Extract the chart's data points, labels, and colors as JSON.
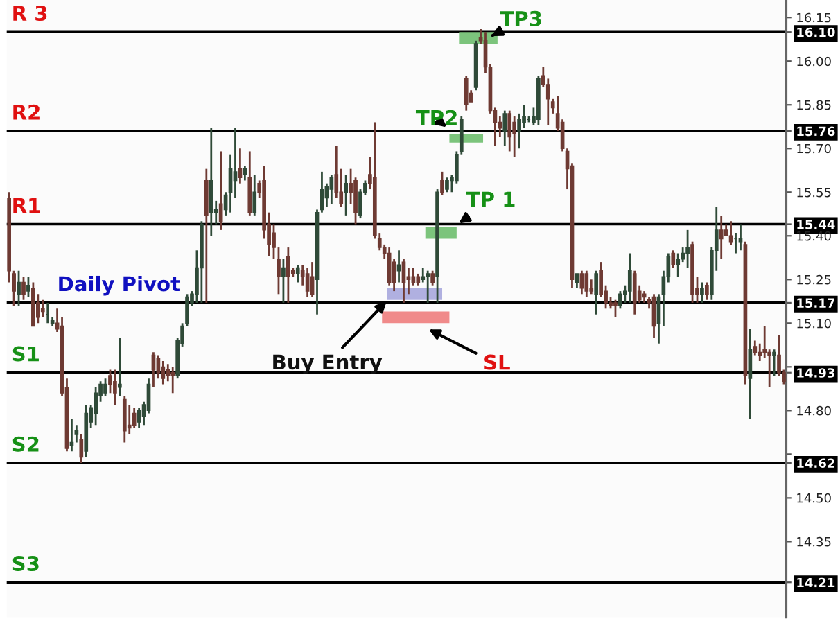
{
  "chart_data": {
    "type": "candlestick",
    "categories": [
      null,
      null,
      null,
      null,
      null,
      null,
      null,
      null,
      null,
      null,
      null,
      null,
      null,
      null,
      null,
      null,
      null,
      null,
      null,
      null,
      null,
      null,
      null,
      null,
      null,
      null,
      null,
      null,
      null,
      null,
      null,
      null,
      null,
      null,
      null,
      null,
      null,
      null,
      null,
      null,
      null,
      null,
      null,
      null,
      null,
      null,
      null,
      null,
      null,
      null,
      null,
      null,
      null,
      null,
      null,
      null,
      null,
      null,
      null,
      null,
      null,
      null,
      null,
      null,
      null,
      null,
      null,
      null,
      null,
      null,
      null,
      null,
      null,
      null,
      null,
      null,
      null,
      null,
      null,
      null,
      null,
      null,
      null,
      null,
      null,
      null,
      null,
      null,
      null,
      null,
      null,
      null,
      null,
      null,
      null,
      null,
      null,
      null,
      null,
      null,
      null,
      null,
      null,
      null,
      null,
      null,
      null,
      null,
      null,
      null,
      null,
      null,
      null,
      null,
      null,
      null,
      null,
      null,
      null,
      null,
      null,
      null,
      null,
      null,
      null,
      null,
      null,
      null,
      null,
      null,
      null,
      null,
      null,
      null,
      null,
      null,
      null,
      null,
      null,
      null,
      null,
      null,
      null,
      null,
      null,
      null,
      null,
      null,
      null,
      null,
      null,
      null,
      null,
      null,
      null,
      null,
      null,
      null,
      null,
      null,
      null,
      null
    ],
    "ohlc": [
      [
        15.53,
        15.55,
        15.24,
        15.28
      ],
      [
        15.27,
        15.28,
        15.16,
        15.21
      ],
      [
        15.2,
        15.28,
        15.16,
        15.24
      ],
      [
        15.24,
        15.26,
        15.18,
        15.2
      ],
      [
        15.21,
        15.26,
        15.19,
        15.23
      ],
      [
        15.22,
        15.24,
        15.09,
        15.09
      ],
      [
        15.17,
        15.2,
        15.1,
        15.12
      ],
      [
        15.15,
        15.18,
        15.12,
        15.14
      ],
      [
        15.13,
        15.17,
        15.1,
        15.13
      ],
      [
        15.1,
        15.12,
        15.09,
        15.11
      ],
      [
        15.1,
        15.15,
        15.07,
        15.08
      ],
      [
        15.09,
        15.12,
        14.85,
        14.86
      ],
      [
        14.88,
        14.91,
        14.66,
        14.67
      ],
      [
        14.68,
        14.77,
        14.66,
        14.69
      ],
      [
        14.72,
        14.75,
        14.69,
        14.73
      ],
      [
        14.7,
        14.72,
        14.62,
        14.64
      ],
      [
        14.66,
        14.82,
        14.64,
        14.79
      ],
      [
        14.76,
        14.82,
        14.74,
        14.81
      ],
      [
        14.79,
        14.88,
        14.75,
        14.86
      ],
      [
        14.85,
        14.9,
        14.83,
        14.89
      ],
      [
        14.86,
        14.91,
        14.85,
        14.89
      ],
      [
        14.92,
        14.94,
        14.86,
        14.89
      ],
      [
        14.9,
        14.94,
        14.82,
        14.86
      ],
      [
        14.88,
        15.05,
        14.85,
        14.89
      ],
      [
        14.84,
        14.85,
        14.69,
        14.73
      ],
      [
        14.75,
        14.82,
        14.72,
        14.74
      ],
      [
        14.79,
        14.81,
        14.74,
        14.75
      ],
      [
        14.76,
        14.81,
        14.74,
        14.8
      ],
      [
        14.78,
        14.83,
        14.75,
        14.82
      ],
      [
        14.8,
        14.91,
        14.79,
        14.89
      ],
      [
        14.99,
        15.0,
        14.88,
        14.94
      ],
      [
        14.98,
        14.99,
        14.91,
        14.93
      ],
      [
        14.95,
        14.97,
        14.89,
        14.91
      ],
      [
        14.94,
        14.96,
        14.9,
        14.92
      ],
      [
        14.93,
        14.95,
        14.86,
        14.92
      ],
      [
        14.92,
        15.05,
        14.91,
        15.04
      ],
      [
        15.03,
        15.1,
        15.02,
        15.09
      ],
      [
        15.1,
        15.2,
        15.09,
        15.19
      ],
      [
        15.17,
        15.21,
        15.16,
        15.2
      ],
      [
        15.2,
        15.35,
        15.17,
        15.29
      ],
      [
        15.29,
        15.45,
        15.17,
        15.44
      ],
      [
        15.59,
        15.63,
        15.17,
        15.47
      ],
      [
        15.48,
        15.77,
        15.4,
        15.59
      ],
      [
        15.48,
        15.52,
        15.44,
        15.49
      ],
      [
        15.51,
        15.69,
        15.42,
        15.45
      ],
      [
        15.49,
        15.55,
        15.47,
        15.54
      ],
      [
        15.55,
        15.68,
        15.48,
        15.63
      ],
      [
        15.59,
        15.77,
        15.53,
        15.62
      ],
      [
        15.63,
        15.7,
        15.58,
        15.6
      ],
      [
        15.61,
        15.64,
        15.59,
        15.63
      ],
      [
        15.6,
        15.69,
        15.47,
        15.48
      ],
      [
        15.48,
        15.61,
        15.47,
        15.55
      ],
      [
        15.58,
        15.59,
        15.53,
        15.55
      ],
      [
        15.59,
        15.64,
        15.39,
        15.42
      ],
      [
        15.44,
        15.48,
        15.33,
        15.37
      ],
      [
        15.41,
        15.44,
        15.32,
        15.36
      ],
      [
        15.32,
        15.36,
        15.2,
        15.26
      ],
      [
        15.26,
        15.32,
        15.17,
        15.29
      ],
      [
        15.33,
        15.36,
        15.17,
        15.26
      ],
      [
        15.28,
        15.29,
        15.26,
        15.27
      ],
      [
        15.27,
        15.3,
        15.24,
        15.29
      ],
      [
        15.28,
        15.3,
        15.23,
        15.26
      ],
      [
        15.27,
        15.29,
        15.19,
        15.21
      ],
      [
        15.26,
        15.31,
        15.19,
        15.2
      ],
      [
        15.25,
        15.49,
        15.13,
        15.48
      ],
      [
        15.49,
        15.62,
        15.48,
        15.56
      ],
      [
        15.53,
        15.58,
        15.5,
        15.57
      ],
      [
        15.56,
        15.61,
        15.51,
        15.6
      ],
      [
        15.61,
        15.71,
        15.53,
        15.55
      ],
      [
        15.55,
        15.63,
        15.5,
        15.51
      ],
      [
        15.55,
        15.61,
        15.47,
        15.58
      ],
      [
        15.58,
        15.63,
        15.51,
        15.55
      ],
      [
        15.59,
        15.6,
        15.44,
        15.48
      ],
      [
        15.47,
        15.56,
        15.46,
        15.55
      ],
      [
        15.55,
        15.59,
        15.54,
        15.58
      ],
      [
        15.61,
        15.67,
        15.56,
        15.58
      ],
      [
        15.6,
        15.79,
        15.39,
        15.4
      ],
      [
        15.39,
        15.41,
        15.35,
        15.36
      ],
      [
        15.36,
        15.37,
        15.32,
        15.34
      ],
      [
        15.34,
        15.36,
        15.23,
        15.24
      ],
      [
        15.31,
        15.32,
        15.21,
        15.24
      ],
      [
        15.28,
        15.35,
        15.24,
        15.3
      ],
      [
        15.31,
        15.32,
        15.17,
        15.24
      ],
      [
        15.26,
        15.29,
        15.2,
        15.25
      ],
      [
        15.26,
        15.29,
        15.23,
        15.24
      ],
      [
        15.26,
        15.27,
        15.23,
        15.24
      ],
      [
        15.25,
        15.29,
        15.24,
        15.26
      ],
      [
        15.26,
        15.28,
        15.17,
        15.27
      ],
      [
        15.27,
        15.28,
        15.23,
        15.24
      ],
      [
        15.26,
        15.56,
        15.17,
        15.55
      ],
      [
        15.59,
        15.62,
        15.54,
        15.55
      ],
      [
        15.56,
        15.6,
        15.55,
        15.59
      ],
      [
        15.59,
        15.61,
        15.55,
        15.6
      ],
      [
        15.59,
        15.69,
        15.58,
        15.68
      ],
      [
        15.69,
        15.81,
        15.68,
        15.8
      ],
      [
        15.94,
        15.95,
        15.83,
        15.85
      ],
      [
        15.89,
        15.9,
        15.86,
        15.86
      ],
      [
        15.91,
        16.07,
        15.9,
        16.06
      ],
      [
        16.08,
        16.11,
        16.06,
        16.07
      ],
      [
        16.07,
        16.1,
        15.96,
        15.98
      ],
      [
        15.98,
        15.99,
        15.82,
        15.83
      ],
      [
        15.83,
        15.84,
        15.71,
        15.79
      ],
      [
        15.79,
        15.81,
        15.74,
        15.77
      ],
      [
        15.76,
        15.83,
        15.71,
        15.82
      ],
      [
        15.82,
        15.83,
        15.69,
        15.74
      ],
      [
        15.79,
        15.81,
        15.67,
        15.75
      ],
      [
        15.76,
        15.82,
        15.7,
        15.8
      ],
      [
        15.79,
        15.85,
        15.77,
        15.81
      ],
      [
        15.8,
        15.81,
        15.79,
        15.8
      ],
      [
        15.79,
        15.84,
        15.78,
        15.81
      ],
      [
        15.8,
        15.95,
        15.78,
        15.94
      ],
      [
        15.95,
        15.98,
        15.91,
        15.92
      ],
      [
        15.92,
        15.94,
        15.78,
        15.87
      ],
      [
        15.86,
        15.87,
        15.82,
        15.84
      ],
      [
        15.82,
        15.88,
        15.76,
        15.77
      ],
      [
        15.79,
        15.8,
        15.69,
        15.7
      ],
      [
        15.69,
        15.7,
        15.56,
        15.63
      ],
      [
        15.64,
        15.65,
        15.22,
        15.25
      ],
      [
        15.24,
        15.27,
        15.22,
        15.27
      ],
      [
        15.27,
        15.28,
        15.2,
        15.22
      ],
      [
        15.27,
        15.28,
        15.19,
        15.21
      ],
      [
        15.22,
        15.25,
        15.2,
        15.21
      ],
      [
        15.2,
        15.28,
        15.13,
        15.27
      ],
      [
        15.28,
        15.31,
        15.19,
        15.2
      ],
      [
        15.21,
        15.23,
        15.15,
        15.17
      ],
      [
        15.17,
        15.19,
        15.15,
        15.16
      ],
      [
        15.17,
        15.18,
        15.12,
        15.16
      ],
      [
        15.16,
        15.21,
        15.15,
        15.2
      ],
      [
        15.2,
        15.23,
        15.17,
        15.21
      ],
      [
        15.21,
        15.34,
        15.17,
        15.28
      ],
      [
        15.27,
        15.28,
        15.13,
        15.17
      ],
      [
        15.21,
        15.23,
        15.17,
        15.18
      ],
      [
        15.2,
        15.21,
        15.17,
        15.19
      ],
      [
        15.18,
        15.19,
        15.15,
        15.17
      ],
      [
        15.19,
        15.2,
        15.05,
        15.09
      ],
      [
        15.1,
        15.2,
        15.03,
        15.19
      ],
      [
        15.2,
        15.28,
        15.09,
        15.26
      ],
      [
        15.26,
        15.34,
        15.24,
        15.33
      ],
      [
        15.34,
        15.35,
        15.29,
        15.3
      ],
      [
        15.3,
        15.34,
        15.26,
        15.32
      ],
      [
        15.32,
        15.36,
        15.31,
        15.34
      ],
      [
        15.34,
        15.42,
        15.29,
        15.36
      ],
      [
        15.37,
        15.38,
        15.17,
        15.2
      ],
      [
        15.22,
        15.26,
        15.17,
        15.2
      ],
      [
        15.2,
        15.24,
        15.17,
        15.22
      ],
      [
        15.23,
        15.24,
        15.18,
        15.2
      ],
      [
        15.2,
        15.36,
        15.18,
        15.35
      ],
      [
        15.35,
        15.5,
        15.28,
        15.42
      ],
      [
        15.42,
        15.47,
        15.32,
        15.39
      ],
      [
        15.42,
        15.44,
        15.4,
        15.4
      ],
      [
        15.4,
        15.45,
        15.37,
        15.38
      ],
      [
        15.39,
        15.41,
        15.34,
        15.39
      ],
      [
        15.38,
        15.44,
        15.35,
        15.39
      ],
      [
        15.37,
        15.38,
        14.89,
        14.92
      ],
      [
        14.91,
        15.08,
        14.77,
        15.01
      ],
      [
        15.02,
        15.04,
        14.99,
        15.0
      ],
      [
        15.0,
        15.03,
        14.97,
        14.99
      ],
      [
        15.01,
        15.09,
        14.98,
        15.0
      ],
      [
        15.0,
        15.01,
        14.88,
        14.99
      ],
      [
        14.99,
        15.01,
        14.92,
        15.0
      ],
      [
        14.99,
        15.06,
        14.92,
        14.93
      ],
      [
        14.93,
        14.94,
        14.89,
        14.9
      ]
    ],
    "ylim": [
      14.09,
      16.21
    ],
    "colors": [
      "#6e3a33",
      "#6e3a33",
      "#2f4a38",
      "#6e3a33",
      "#2f4a38",
      "#6e3a33",
      "#6e3a33",
      "#6e3a33",
      "#2f4a38",
      "#2f4a38",
      "#6e3a33",
      "#6e3a33",
      "#6e3a33",
      "#2f4a38",
      "#2f4a38",
      "#6e3a33",
      "#2f4a38",
      "#2f4a38",
      "#2f4a38",
      "#2f4a38",
      "#2f4a38",
      "#6e3a33",
      "#6e3a33",
      "#2f4a38",
      "#6e3a33",
      "#6e3a33",
      "#6e3a33",
      "#2f4a38",
      "#2f4a38",
      "#2f4a38",
      "#6e3a33",
      "#6e3a33",
      "#6e3a33",
      "#6e3a33",
      "#6e3a33",
      "#2f4a38",
      "#2f4a38",
      "#2f4a38",
      "#2f4a38",
      "#2f4a38",
      "#2f4a38",
      "#6e3a33",
      "#2f4a38",
      "#2f4a38",
      "#6e3a33",
      "#2f4a38",
      "#2f4a38",
      "#2f4a38",
      "#6e3a33",
      "#2f4a38",
      "#6e3a33",
      "#2f4a38",
      "#6e3a33",
      "#6e3a33",
      "#6e3a33",
      "#6e3a33",
      "#6e3a33",
      "#2f4a38",
      "#6e3a33",
      "#6e3a33",
      "#2f4a38",
      "#6e3a33",
      "#6e3a33",
      "#6e3a33",
      "#2f4a38",
      "#2f4a38",
      "#2f4a38",
      "#2f4a38",
      "#6e3a33",
      "#6e3a33",
      "#2f4a38",
      "#6e3a33",
      "#6e3a33",
      "#2f4a38",
      "#2f4a38",
      "#6e3a33",
      "#6e3a33",
      "#6e3a33",
      "#6e3a33",
      "#6e3a33",
      "#6e3a33",
      "#2f4a38",
      "#6e3a33",
      "#6e3a33",
      "#6e3a33",
      "#6e3a33",
      "#2f4a38",
      "#2f4a38",
      "#6e3a33",
      "#2f4a38",
      "#6e3a33",
      "#2f4a38",
      "#2f4a38",
      "#2f4a38",
      "#2f4a38",
      "#6e3a33",
      "#6e3a33",
      "#2f4a38",
      "#6e3a33",
      "#6e3a33",
      "#6e3a33",
      "#6e3a33",
      "#6e3a33",
      "#2f4a38",
      "#6e3a33",
      "#6e3a33",
      "#2f4a38",
      "#2f4a38",
      "#2f4a38",
      "#2f4a38",
      "#2f4a38",
      "#6e3a33",
      "#6e3a33",
      "#6e3a33",
      "#6e3a33",
      "#6e3a33",
      "#6e3a33",
      "#6e3a33",
      "#2f4a38",
      "#6e3a33",
      "#6e3a33",
      "#6e3a33",
      "#2f4a38",
      "#6e3a33",
      "#6e3a33",
      "#6e3a33",
      "#6e3a33",
      "#2f4a38",
      "#2f4a38",
      "#2f4a38",
      "#6e3a33",
      "#6e3a33",
      "#6e3a33",
      "#6e3a33",
      "#6e3a33",
      "#2f4a38",
      "#2f4a38",
      "#2f4a38",
      "#6e3a33",
      "#2f4a38",
      "#2f4a38",
      "#2f4a38",
      "#6e3a33",
      "#6e3a33",
      "#2f4a38",
      "#6e3a33",
      "#2f4a38",
      "#2f4a38",
      "#6e3a33",
      "#6e3a33",
      "#6e3a33",
      "#2f4a38",
      "#2f4a38",
      "#6e3a33",
      "#2f4a38",
      "#6e3a33",
      "#6e3a33",
      "#6e3a33",
      "#6e3a33",
      "#2f4a38",
      "#6e3a33",
      "#6e3a33"
    ],
    "yticks": [
      16.15,
      {
        "value": 16.1,
        "label": "16.10"
      },
      {
        "value": 16.0,
        "label": "16.00"
      },
      15.85,
      15.76,
      {
        "value": 15.7,
        "label": "15.70"
      },
      15.55,
      15.44,
      {
        "value": 15.4,
        "label": "15.40"
      },
      15.25,
      15.17,
      {
        "value": 15.1,
        "label": "15.10"
      },
      {
        "value": 14.95,
        "label": null
      },
      14.93,
      {
        "value": 14.8,
        "label": "14.80"
      },
      {
        "value": 14.65,
        "label": null
      },
      14.62,
      {
        "value": 14.5,
        "label": "14.50"
      },
      14.35,
      14.21
    ],
    "ref_lines": [
      {
        "axis": "y",
        "value": 16.1,
        "label": "R 3",
        "color": "#000000"
      },
      {
        "axis": "y",
        "value": 15.76,
        "label": "R2",
        "color": "#000000"
      },
      {
        "axis": "y",
        "value": 15.44,
        "label": "R1",
        "color": "#000000"
      },
      {
        "axis": "y",
        "value": 15.17,
        "label": "Daily Pivot",
        "color": "#000000"
      },
      {
        "axis": "y",
        "value": 14.93,
        "label": "S1",
        "color": "#000000"
      },
      {
        "axis": "y",
        "value": 14.62,
        "label": "S2",
        "color": "#000000"
      },
      {
        "axis": "y",
        "value": 14.21,
        "label": "S3",
        "color": "#000000"
      }
    ],
    "bands": [
      {
        "axis": "y",
        "from": 16.06,
        "to": 16.1,
        "label": "TP3",
        "color": "#7cc47c"
      },
      {
        "axis": "y",
        "from": 15.72,
        "to": 15.75,
        "label": "TP2",
        "color": "#7cc47c"
      },
      {
        "axis": "y",
        "from": 15.39,
        "to": 15.43,
        "label": "TP 1",
        "color": "#7cc47c"
      },
      {
        "axis": "y",
        "from": 15.18,
        "to": 15.22,
        "label": "Buy Entry",
        "color": "#b0b0e0"
      },
      {
        "axis": "y",
        "from": 15.1,
        "to": 15.14,
        "label": "SL",
        "color": "#f08a8a"
      }
    ],
    "grid": false,
    "legend": false
  }
}
